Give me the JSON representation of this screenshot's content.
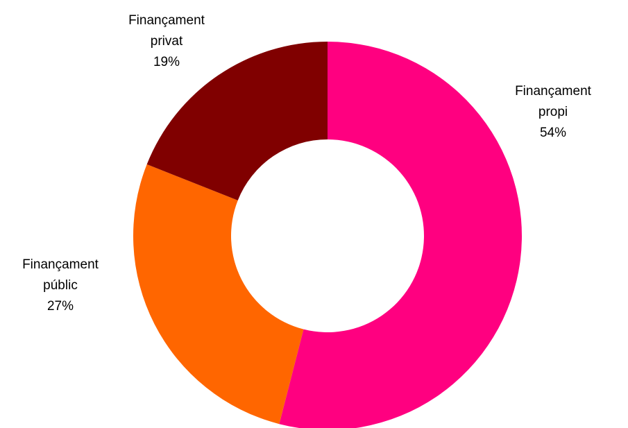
{
  "chart_data": {
    "type": "donut",
    "categories": [
      "Finançament propi",
      "Finançament públic",
      "Finançament privat"
    ],
    "values": [
      54,
      27,
      19
    ],
    "value_labels": [
      "54%",
      "27%",
      "19%"
    ],
    "colors": [
      "#ff0080",
      "#ff6600",
      "#800000"
    ]
  }
}
